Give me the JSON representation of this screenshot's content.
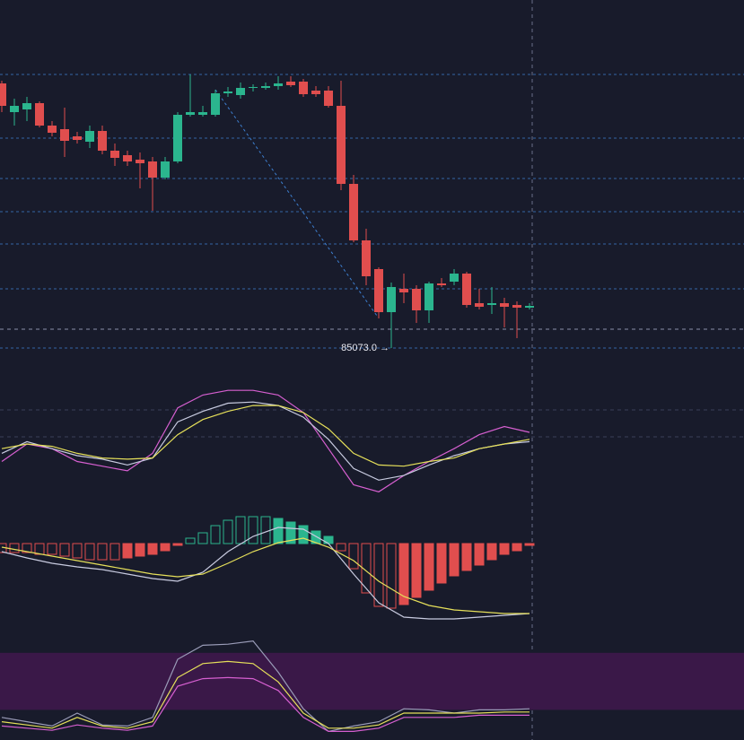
{
  "chart_data": [
    {
      "type": "candlestick",
      "open": [
        90973,
        90333,
        90393,
        90533,
        90033,
        89953,
        89793,
        89673,
        89913,
        89473,
        89373,
        89273,
        89233,
        88873,
        89233,
        90273,
        90273,
        90273,
        90753,
        90713,
        90873,
        90873,
        90913,
        91013,
        91013,
        90813,
        90813,
        90473,
        88733,
        87473,
        86833,
        85873,
        86393,
        86393,
        85913,
        86513,
        86553,
        86733,
        86073,
        86033,
        86073,
        86033,
        85973
      ],
      "high": [
        91033,
        90633,
        90673,
        90573,
        90133,
        90433,
        89893,
        90033,
        90033,
        89633,
        89473,
        89433,
        89333,
        89333,
        90333,
        91173,
        90473,
        90833,
        90893,
        90993,
        90953,
        90993,
        91133,
        91133,
        91073,
        90913,
        90913,
        91033,
        88933,
        87733,
        86873,
        86533,
        86733,
        86473,
        86553,
        86633,
        86833,
        86773,
        86393,
        86433,
        86193,
        86113,
        86073
      ],
      "low": [
        90333,
        90033,
        90133,
        89993,
        89793,
        89333,
        89633,
        89533,
        89393,
        89133,
        89133,
        88633,
        88133,
        88833,
        89193,
        90233,
        90233,
        90233,
        90673,
        90633,
        90793,
        90833,
        90833,
        90893,
        90673,
        90673,
        90433,
        88593,
        87433,
        86473,
        85733,
        85073,
        86073,
        85633,
        85633,
        86433,
        86473,
        85973,
        85933,
        85833,
        85533,
        85293,
        85933
      ],
      "close": [
        90473,
        90473,
        90533,
        90033,
        89873,
        89693,
        89713,
        89913,
        89473,
        89313,
        89233,
        89193,
        88873,
        89233,
        90273,
        90333,
        90333,
        90753,
        90793,
        90873,
        90893,
        90913,
        90973,
        90933,
        90733,
        90733,
        90473,
        88733,
        87473,
        86673,
        85873,
        86433,
        86313,
        85913,
        86513,
        86473,
        86733,
        86033,
        85993,
        86073,
        85993,
        85973,
        86013
      ],
      "up_color": "#2bb58e",
      "down_color": "#e04e4e",
      "ylim": [
        84533,
        92833
      ],
      "levels": [
        91173,
        89753,
        88853,
        88113,
        87393,
        86393,
        85073
      ],
      "last_price": 85493,
      "annotation": "85073.0 →",
      "annotation_index": 31
    },
    {
      "type": "line",
      "ylim": [
        0,
        100
      ],
      "series": [
        {
          "color": "#d65fd0",
          "values": [
            35,
            50,
            46,
            35,
            31,
            27,
            42,
            81,
            92,
            96,
            96,
            92,
            77,
            46,
            15,
            9,
            23,
            35,
            46,
            58,
            65,
            60
          ]
        },
        {
          "color": "#c8cbe0",
          "values": [
            42,
            52,
            46,
            40,
            37,
            32,
            38,
            69,
            78,
            85,
            86,
            83,
            73,
            54,
            29,
            19,
            23,
            32,
            40,
            46,
            50,
            52
          ]
        },
        {
          "color": "#e6e05a",
          "values": [
            46,
            50,
            48,
            42,
            38,
            37,
            38,
            58,
            71,
            78,
            83,
            83,
            77,
            63,
            42,
            32,
            31,
            35,
            38,
            46,
            50,
            54
          ]
        }
      ]
    },
    {
      "type": "macd",
      "ylim": [
        -94,
        46
      ],
      "histogram": {
        "up_color": "#2bb58e",
        "down_color": "#e04e4e",
        "values": [
          -10,
          -10,
          -10,
          -12,
          -12,
          -14,
          -16,
          -18,
          -18,
          -18,
          -16,
          -14,
          -12,
          -8,
          -2,
          6,
          12,
          20,
          26,
          30,
          30,
          30,
          28,
          24,
          20,
          14,
          8,
          -8,
          -28,
          -55,
          -70,
          -72,
          -68,
          -60,
          -52,
          -44,
          -36,
          -30,
          -24,
          -18,
          -12,
          -8,
          -2
        ]
      },
      "series": [
        {
          "color": "#c8cbe0",
          "values": [
            -9,
            -16,
            -22,
            -26,
            -29,
            -34,
            -39,
            -42,
            -32,
            -9,
            8,
            18,
            16,
            0,
            -34,
            -66,
            -82,
            -84,
            -84,
            -82,
            -80,
            -78
          ]
        },
        {
          "color": "#e6e05a",
          "values": [
            -4,
            -9,
            -14,
            -19,
            -24,
            -29,
            -34,
            -37,
            -34,
            -22,
            -9,
            1,
            6,
            -4,
            -19,
            -42,
            -59,
            -69,
            -74,
            -76,
            -78,
            -78
          ]
        }
      ]
    },
    {
      "type": "line",
      "ylim": [
        0,
        100
      ],
      "band": [
        28,
        81
      ],
      "band_color": "#3a1848",
      "series": [
        {
          "color": "#9a9cb8",
          "values": [
            21,
            17,
            13,
            25,
            14,
            13,
            21,
            75,
            88,
            89,
            92,
            63,
            29,
            8,
            13,
            17,
            29,
            28,
            25,
            28,
            28,
            29
          ]
        },
        {
          "color": "#e6e05a",
          "values": [
            17,
            14,
            11,
            21,
            13,
            11,
            17,
            58,
            71,
            73,
            71,
            54,
            25,
            11,
            11,
            14,
            25,
            25,
            25,
            25,
            26,
            26
          ]
        },
        {
          "color": "#d65fd0",
          "values": [
            13,
            11,
            9,
            14,
            11,
            9,
            13,
            50,
            57,
            58,
            57,
            46,
            21,
            8,
            8,
            11,
            21,
            21,
            21,
            23,
            23,
            23
          ]
        }
      ]
    }
  ]
}
